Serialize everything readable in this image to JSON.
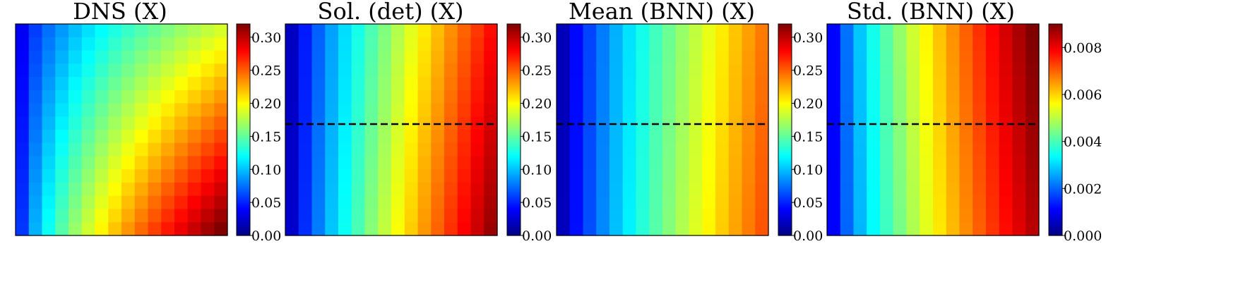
{
  "chart_data": [
    {
      "type": "heatmap",
      "title": "DNS (X)",
      "grid": [
        16,
        16
      ],
      "field": "dns",
      "colormap": "jet",
      "vmin": 0.0,
      "vmax": 0.32,
      "colorbar_ticks": [
        "0.00",
        "0.05",
        "0.10",
        "0.15",
        "0.20",
        "0.25",
        "0.30"
      ],
      "colorbar_tick_values": [
        0.0,
        0.05,
        0.1,
        0.15,
        0.2,
        0.25,
        0.3
      ],
      "dashed_line": false
    },
    {
      "type": "heatmap",
      "title": "Sol. (det) (X)",
      "grid": [
        16,
        16
      ],
      "field": "det",
      "colormap": "jet",
      "vmin": 0.0,
      "vmax": 0.32,
      "colorbar_ticks": [
        "0.00",
        "0.05",
        "0.10",
        "0.15",
        "0.20",
        "0.25",
        "0.30"
      ],
      "colorbar_tick_values": [
        0.0,
        0.05,
        0.1,
        0.15,
        0.2,
        0.25,
        0.3
      ],
      "dashed_line": true,
      "dashed_line_color": "#000000"
    },
    {
      "type": "heatmap",
      "title": "Mean (BNN) (X)",
      "grid": [
        16,
        16
      ],
      "field": "mean",
      "colormap": "jet",
      "vmin": 0.0,
      "vmax": 0.32,
      "colorbar_ticks": [
        "0.00",
        "0.05",
        "0.10",
        "0.15",
        "0.20",
        "0.25",
        "0.30"
      ],
      "colorbar_tick_values": [
        0.0,
        0.05,
        0.1,
        0.15,
        0.2,
        0.25,
        0.3
      ],
      "dashed_line": true,
      "dashed_line_color": "#000000"
    },
    {
      "type": "heatmap",
      "title": "Std. (BNN) (X)",
      "grid": [
        16,
        16
      ],
      "field": "std",
      "colormap": "jet",
      "vmin": 0.0,
      "vmax": 0.009,
      "colorbar_ticks": [
        "0.000",
        "0.002",
        "0.004",
        "0.006",
        "0.008"
      ],
      "colorbar_tick_values": [
        0.0,
        0.002,
        0.004,
        0.006,
        0.008
      ],
      "dashed_line": true,
      "dashed_line_color": "#000000"
    }
  ]
}
